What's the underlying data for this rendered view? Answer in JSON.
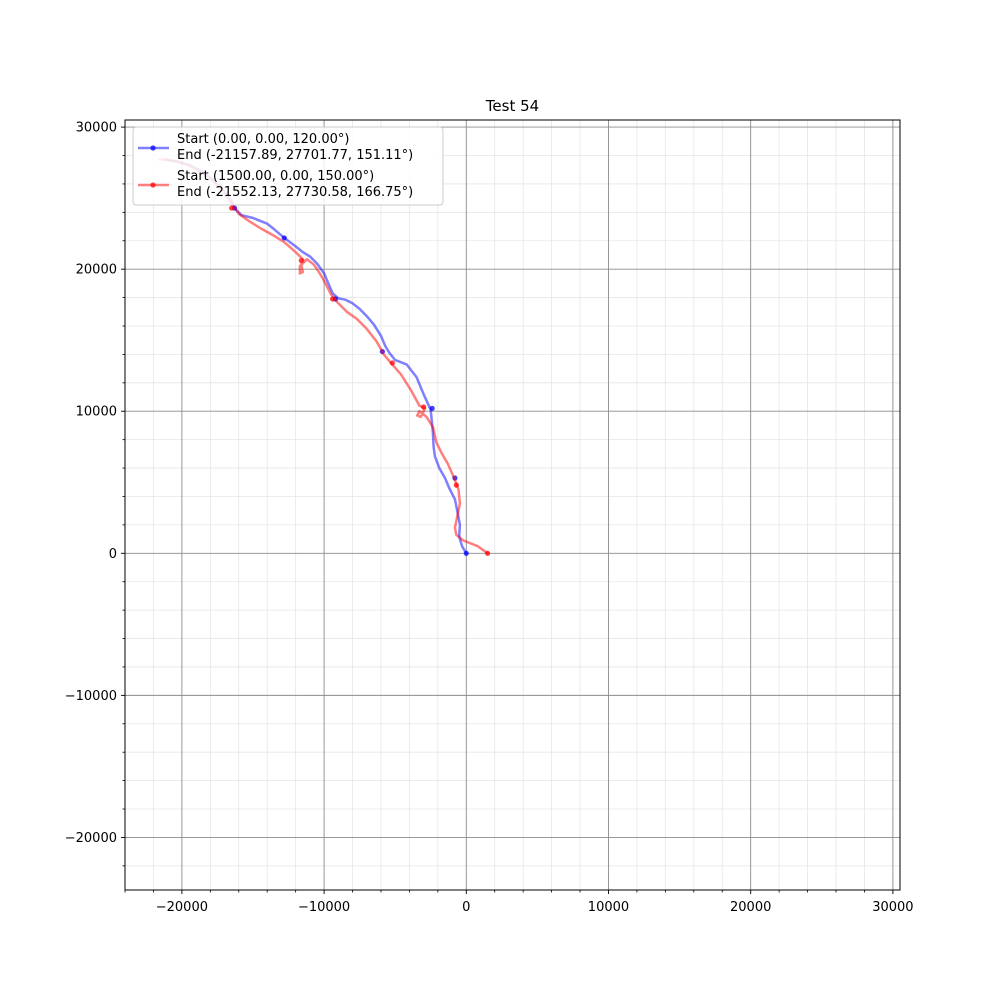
{
  "chart_data": {
    "type": "line",
    "title": "Test 54",
    "xlabel": "",
    "ylabel": "",
    "xlim": [
      -24000,
      30500
    ],
    "ylim": [
      -23700,
      30500
    ],
    "xticks": [
      -20000,
      -10000,
      0,
      10000,
      20000,
      30000
    ],
    "xtick_labels": [
      "−20000",
      "−10000",
      "0",
      "10000",
      "20000",
      "30000"
    ],
    "yticks": [
      -20000,
      -10000,
      0,
      10000,
      20000,
      30000
    ],
    "ytick_labels": [
      "−20000",
      "−10000",
      "0",
      "10000",
      "20000",
      "30000"
    ],
    "grid": true,
    "minor_grid": true,
    "legend_position": "top-left",
    "series": [
      {
        "legend_line1": "Start (0.00, 0.00, 120.00°)",
        "legend_line2": " End  (-21157.89, 27701.77, 151.11°)",
        "color": "#0000ff",
        "x": [
          0,
          -300,
          -500,
          -450,
          -600,
          -800,
          -1200,
          -1500,
          -1900,
          -2200,
          -2300,
          -2350,
          -2500,
          -3000,
          -3500,
          -4200,
          -5000,
          -5400,
          -5700,
          -6000,
          -6500,
          -7000,
          -7500,
          -8000,
          -8500,
          -9000,
          -9400,
          -9700,
          -10000,
          -10500,
          -11000,
          -11500,
          -12000,
          -12800,
          -13500,
          -14000,
          -15000,
          -15800,
          -16300,
          -16500,
          -17000,
          -17800,
          -18600,
          -19400,
          -20200,
          -20800,
          -21157.89
        ],
        "y": [
          0,
          500,
          1200,
          2000,
          2800,
          3800,
          4600,
          5300,
          6000,
          6800,
          7500,
          8500,
          10100,
          11200,
          12400,
          13300,
          13600,
          14100,
          14600,
          15300,
          16100,
          16700,
          17200,
          17600,
          17850,
          17950,
          18300,
          19000,
          19700,
          20400,
          20900,
          21200,
          21600,
          22200,
          22800,
          23200,
          23600,
          23800,
          24300,
          24800,
          25500,
          26300,
          26900,
          27300,
          27550,
          27650,
          27701.77
        ],
        "markers_x": [
          0,
          -800,
          -2400,
          -5900,
          -9200,
          -12800,
          -16300
        ],
        "markers_y": [
          0,
          5300,
          10200,
          14200,
          17900,
          22200,
          24300
        ]
      },
      {
        "legend_line1": "Start (1500.00, 0.00, 150.00°)",
        "legend_line2": " End  (-21552.13, 27730.58, 166.75°)",
        "color": "#ff0000",
        "x": [
          1500,
          800,
          -200,
          -700,
          -800,
          -650,
          -450,
          -550,
          -900,
          -1300,
          -1700,
          -2100,
          -2350,
          -2800,
          -3300,
          -3450,
          -3200,
          -2900,
          -3300,
          -3900,
          -4600,
          -5300,
          -5800,
          -6300,
          -7000,
          -7700,
          -8400,
          -9000,
          -9500,
          -9900,
          -10300,
          -10700,
          -11200,
          -11600,
          -11500,
          -11700,
          -11700,
          -11400,
          -12000,
          -12800,
          -13600,
          -14500,
          -15300,
          -16000,
          -16500,
          -17100,
          -17900,
          -18800,
          -19600,
          -20400,
          -21000,
          -21552.13
        ],
        "y": [
          0,
          500,
          900,
          1300,
          1800,
          2500,
          3500,
          4500,
          5400,
          6300,
          7000,
          7800,
          8900,
          9600,
          10000,
          9700,
          9600,
          10200,
          10400,
          11500,
          12600,
          13400,
          14000,
          14900,
          15800,
          16500,
          17000,
          17600,
          18200,
          19000,
          19700,
          20300,
          20700,
          20300,
          19800,
          19700,
          20200,
          20600,
          21200,
          21900,
          22400,
          22900,
          23400,
          23900,
          24600,
          25400,
          26300,
          26900,
          27350,
          27600,
          27700,
          27730.58
        ],
        "markers_x": [
          1500,
          -700,
          -3000,
          -5200,
          -9400,
          -11600,
          -16500
        ],
        "markers_y": [
          0,
          4800,
          10300,
          13400,
          17900,
          20600,
          24300
        ]
      }
    ]
  }
}
